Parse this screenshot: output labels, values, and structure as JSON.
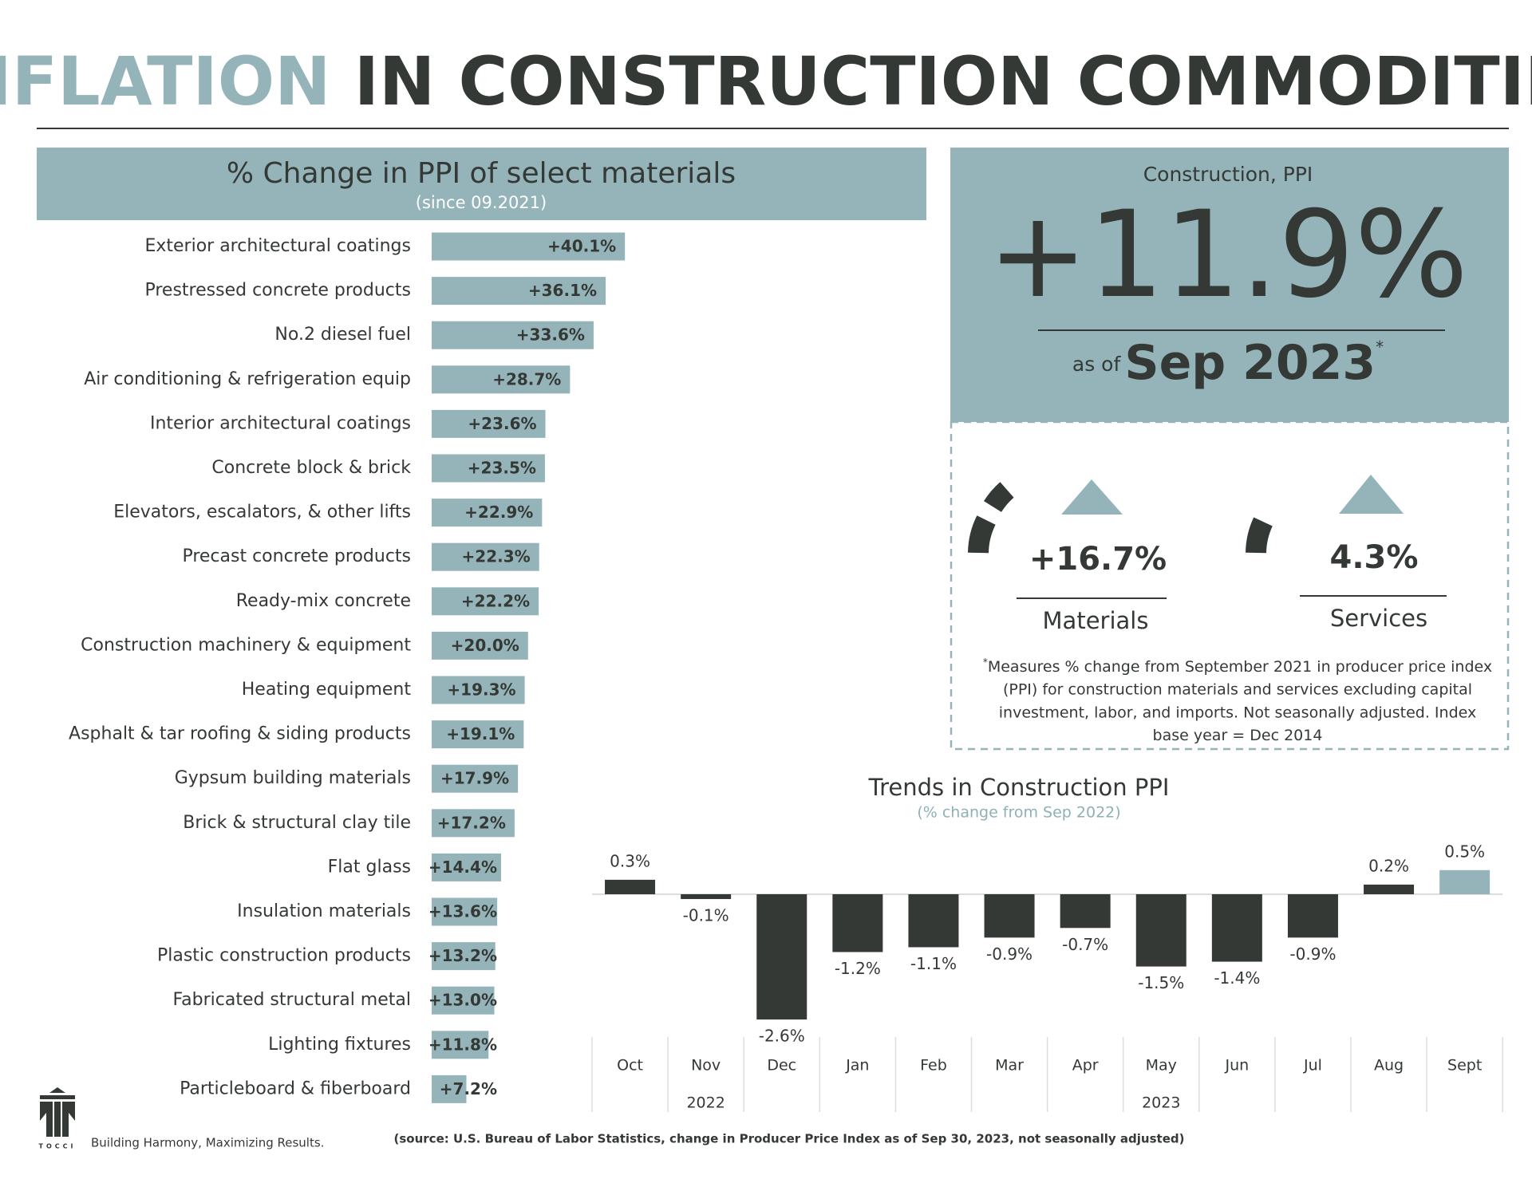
{
  "title": {
    "highlight": "INFLATION",
    "rest": "IN CONSTRUCTION COMMODITIES"
  },
  "chart_data": [
    {
      "type": "hbar",
      "title": "% Change in PPI of select materials",
      "subtitle": "(since 09.2021)",
      "categories": [
        "Exterior architectural coatings",
        "Prestressed concrete products",
        "No.2 diesel fuel",
        "Air conditioning & refrigeration equip",
        "Interior architectural coatings",
        "Concrete block & brick",
        "Elevators, escalators, & other lifts",
        "Precast concrete products",
        "Ready-mix concrete",
        "Construction machinery & equipment",
        "Heating equipment",
        "Asphalt & tar roofing & siding products",
        "Gypsum building materials",
        "Brick & structural clay tile",
        "Flat glass",
        "Insulation materials",
        "Plastic construction products",
        "Fabricated structural metal",
        "Lighting fixtures",
        "Particleboard & fiberboard"
      ],
      "values": [
        40.1,
        36.1,
        33.6,
        28.7,
        23.6,
        23.5,
        22.9,
        22.3,
        22.2,
        20.0,
        19.3,
        19.1,
        17.9,
        17.2,
        14.4,
        13.6,
        13.2,
        13.0,
        11.8,
        7.2
      ],
      "value_labels": [
        "+40.1%",
        "+36.1%",
        "+33.6%",
        "+28.7%",
        "+23.6%",
        "+23.5%",
        "+22.9%",
        "+22.3%",
        "+22.2%",
        "+20.0%",
        "+19.3%",
        "+19.1%",
        "+17.9%",
        "+17.2%",
        "+14.4%",
        "+13.6%",
        "+13.2%",
        "+13.0%",
        "+11.8%",
        "+7.2%"
      ],
      "color": "#94b4b9"
    },
    {
      "type": "bar",
      "title": "Trends in Construction PPI",
      "subtitle": "(% change from Sep 2022)",
      "categories": [
        "Oct",
        "Nov",
        "Dec",
        "Jan",
        "Feb",
        "Mar",
        "Apr",
        "May",
        "Jun",
        "Jul",
        "Aug",
        "Sept"
      ],
      "groups": [
        {
          "label": "2022",
          "count": 3
        },
        {
          "label": "2023",
          "count": 9
        }
      ],
      "values": [
        0.3,
        -0.1,
        -2.6,
        -1.2,
        -1.1,
        -0.9,
        -0.7,
        -1.5,
        -1.4,
        -0.9,
        0.2,
        0.5
      ],
      "value_labels": [
        "0.3%",
        "-0.1%",
        "-2.6%",
        "-1.2%",
        "-1.1%",
        "-0.9%",
        "-0.7%",
        "-1.5%",
        "-1.4%",
        "-0.9%",
        "0.2%",
        "0.5%"
      ],
      "colors": [
        "#353936",
        "#353936",
        "#353936",
        "#353936",
        "#353936",
        "#353936",
        "#353936",
        "#353936",
        "#353936",
        "#353936",
        "#353936",
        "#94b4b9"
      ]
    }
  ],
  "kpi": {
    "label": "Construction, PPI",
    "value": "+11.9%",
    "as_of_prefix": "as of",
    "as_of_date": "Sep 2023",
    "as_of_mark": "*",
    "materials": {
      "value": "+16.7%",
      "label": "Materials"
    },
    "services": {
      "value": "4.3%",
      "label": "Services"
    }
  },
  "footnote": {
    "mark": "*",
    "lines": [
      "Measures % change from September 2021 in producer price index",
      "(PPI) for construction materials and services excluding capital",
      "investment, labor, and imports. Not seasonally adjusted. Index",
      "base year = Dec 2014"
    ]
  },
  "source": "(source: U.S. Bureau of Labor Statistics, change in Producer Price Index as of Sep 30, 2023, not seasonally adjusted)",
  "logo": "TOCCI",
  "tagline": "Building Harmony, Maximizing Results."
}
